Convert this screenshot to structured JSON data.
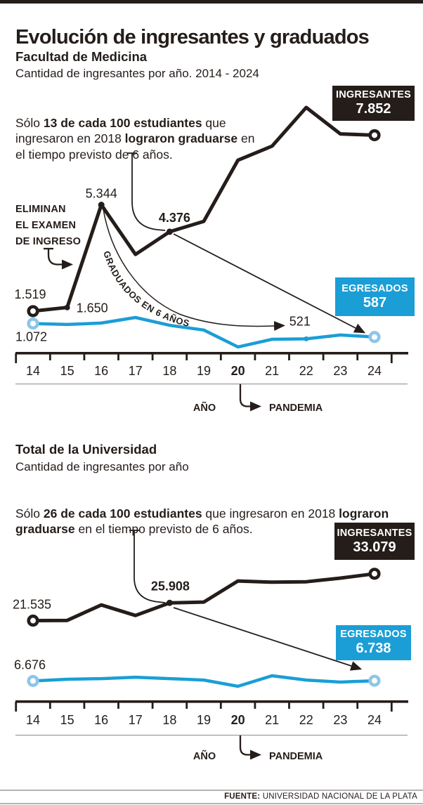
{
  "header": {
    "title": "Evolución de ingresantes y graduados"
  },
  "colors": {
    "ink_black": "#241d1a",
    "accent_blue": "#1b9ed6",
    "light_blue_ring": "#8cc6e9",
    "gray_rule": "#9a9a9a"
  },
  "pandemic_year": "20",
  "chart_data": [
    {
      "type": "line",
      "title": "Facultad de Medicina",
      "subtitle": "Cantidad de ingresantes por año. 2014 - 2024",
      "callout": {
        "s1": "Sólo ",
        "s2": "13 de cada 100 estudiantes",
        "s3": " que ingresaron en 2018 ",
        "s4": "lograron graduarse",
        "s5": " en el tiempo previsto de 6 años."
      },
      "categories": [
        "14",
        "15",
        "16",
        "17",
        "18",
        "19",
        "20",
        "21",
        "22",
        "23",
        "24"
      ],
      "xlabel": "AÑO",
      "ylim": [
        0,
        9000
      ],
      "grid": false,
      "series": [
        {
          "name": "INGRESANTES",
          "color": "#241d1a",
          "values": [
            1519,
            1650,
            5344,
            3560,
            4376,
            4750,
            6950,
            7460,
            8850,
            7900,
            7852
          ],
          "badge": {
            "label": "INGRESANTES",
            "value": "7.852"
          }
        },
        {
          "name": "EGRESADOS",
          "color": "#1b9ed6",
          "values": [
            1072,
            1040,
            1090,
            1290,
            1010,
            840,
            230,
            505,
            521,
            660,
            587
          ],
          "badge": {
            "label": "EGRESADOS",
            "value": "587"
          }
        }
      ],
      "point_labels": [
        {
          "id": "c1-1519",
          "series": 0,
          "i": 0,
          "text": "1.519",
          "bold": false
        },
        {
          "id": "c1-1650",
          "series": 0,
          "i": 1,
          "text": "1.650",
          "bold": false
        },
        {
          "id": "c1-5344",
          "series": 0,
          "i": 2,
          "text": "5.344",
          "bold": false
        },
        {
          "id": "c1-4376",
          "series": 0,
          "i": 4,
          "text": "4.376",
          "bold": true
        },
        {
          "id": "c1-1072",
          "series": 1,
          "i": 0,
          "text": "1.072",
          "bold": false
        },
        {
          "id": "c1-521",
          "series": 1,
          "i": 8,
          "text": "521",
          "bold": false
        }
      ],
      "annotations": {
        "eliminan": [
          "ELIMINAN",
          "EL EXAMEN",
          "DE INGRESO"
        ],
        "grad_curve": "GRADUADOS EN 6 AÑOS",
        "pandemic": "PANDEMIA"
      }
    },
    {
      "type": "line",
      "title": "Total de la Universidad",
      "subtitle": "Cantidad de ingresantes por año",
      "callout": {
        "s1": "Sólo ",
        "s2": "26 de cada 100 estudiantes",
        "s3": " que ingresaron en 2018 ",
        "s4": "lograron graduarse",
        "s5": " en el tiempo previsto de 6 años."
      },
      "categories": [
        "14",
        "15",
        "16",
        "17",
        "18",
        "19",
        "20",
        "21",
        "22",
        "23",
        "24"
      ],
      "xlabel": "AÑO",
      "ylim": [
        0,
        34000
      ],
      "grid": false,
      "series": [
        {
          "name": "INGRESANTES",
          "color": "#241d1a",
          "values": [
            21535,
            21600,
            25400,
            22800,
            25908,
            26100,
            31300,
            31000,
            31100,
            32000,
            33079
          ],
          "badge": {
            "label": "INGRESANTES",
            "value": "33.079"
          }
        },
        {
          "name": "EGRESADOS",
          "color": "#1b9ed6",
          "values": [
            6676,
            7100,
            7250,
            7600,
            7250,
            6900,
            5360,
            7950,
            6900,
            6400,
            6738
          ],
          "badge": {
            "label": "EGRESADOS",
            "value": "6.738"
          }
        }
      ],
      "point_labels": [
        {
          "id": "c2-21535",
          "series": 0,
          "i": 0,
          "text": "21.535",
          "bold": false
        },
        {
          "id": "c2-25908",
          "series": 0,
          "i": 4,
          "text": "25.908",
          "bold": true
        },
        {
          "id": "c2-6676",
          "series": 1,
          "i": 0,
          "text": "6.676",
          "bold": false
        }
      ],
      "annotations": {
        "pandemic": "PANDEMIA"
      }
    }
  ],
  "footer": {
    "label": "FUENTE:",
    "text": "UNIVERSIDAD NACIONAL DE LA PLATA"
  }
}
